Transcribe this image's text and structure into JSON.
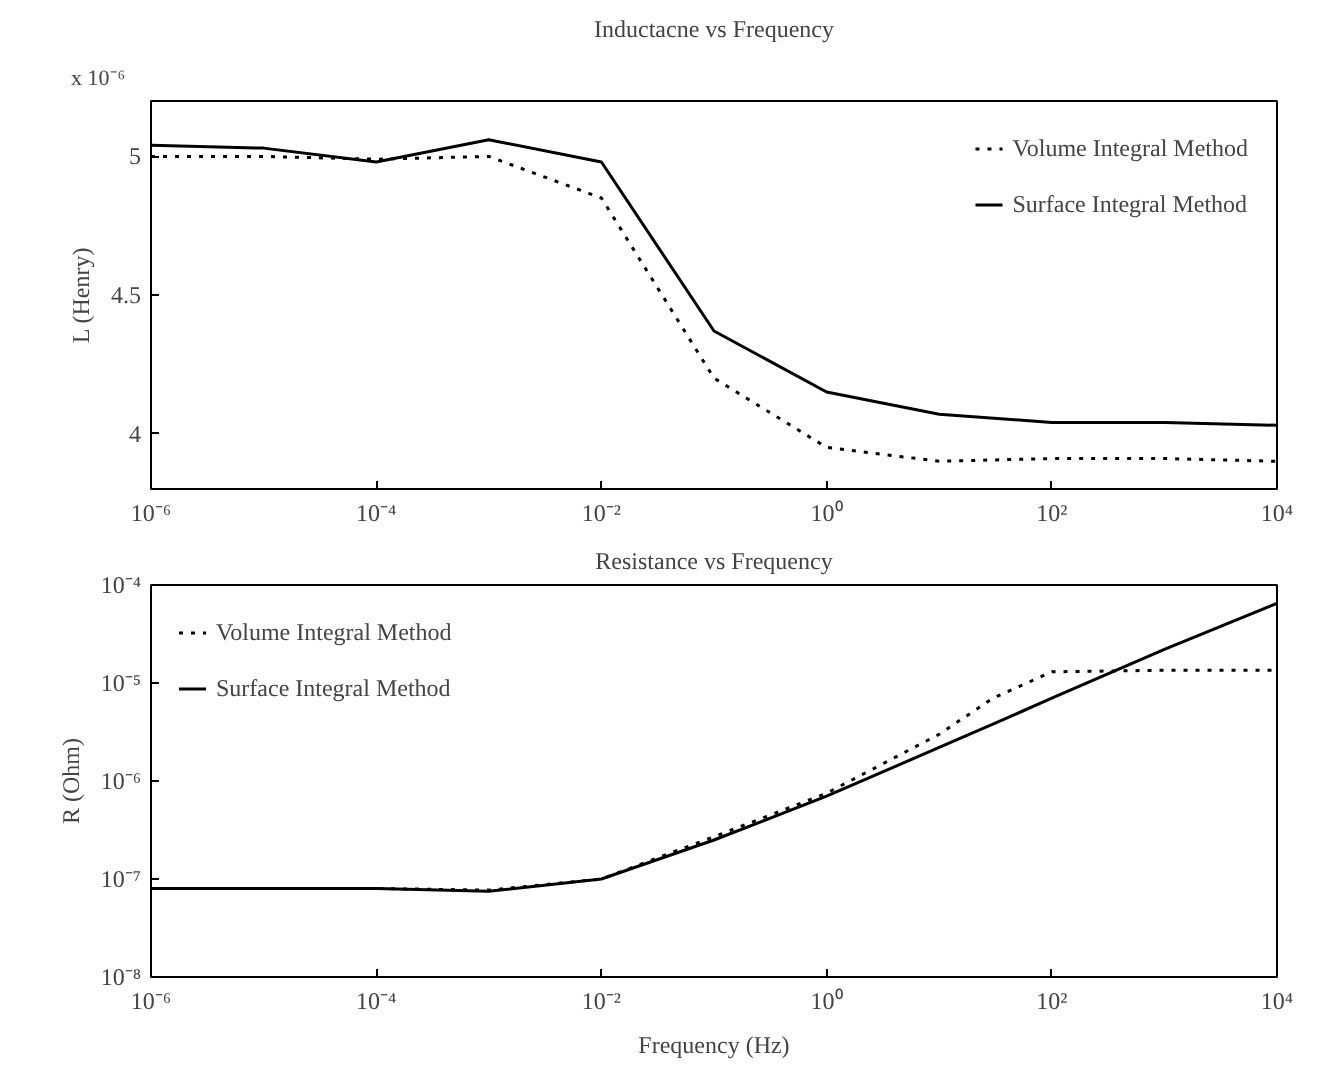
{
  "chart_data": [
    {
      "type": "line",
      "title": "Inductacne vs Frequency",
      "ylabel": "L (Henry)",
      "annotations": [
        "x 10⁻⁶"
      ],
      "x": [
        1e-06,
        1e-05,
        0.0001,
        0.001,
        0.01,
        0.1,
        1,
        10,
        100,
        1000,
        10000
      ],
      "series": [
        {
          "name": "Volume Integral Method",
          "color": "#000000",
          "line_style": "dotted",
          "values": [
            5.0,
            5.0,
            4.99,
            5.0,
            4.85,
            4.2,
            3.95,
            3.9,
            3.91,
            3.91,
            3.9
          ]
        },
        {
          "name": "Surface Integral Method",
          "color": "#000000",
          "line_style": "solid",
          "values": [
            5.04,
            5.03,
            4.98,
            5.06,
            4.98,
            4.37,
            4.15,
            4.07,
            4.04,
            4.04,
            4.03
          ]
        }
      ],
      "log": "x",
      "xlim": [
        1e-06,
        10000
      ],
      "ylim": [
        3.8,
        5.2
      ],
      "xticks": [
        {
          "value": 1e-06,
          "label": "10⁻⁶"
        },
        {
          "value": 0.0001,
          "label": "10⁻⁴"
        },
        {
          "value": 0.01,
          "label": "10⁻²"
        },
        {
          "value": 1,
          "label": "10⁰"
        },
        {
          "value": 100,
          "label": "10²"
        },
        {
          "value": 10000,
          "label": "10⁴"
        }
      ],
      "yticks": [
        4,
        4.5,
        5
      ],
      "grid": false,
      "legend": "top right"
    },
    {
      "type": "line",
      "title": "Resistance vs Frequency",
      "xlabel": "Frequency (Hz)",
      "ylabel": "R (Ohm)",
      "x": [
        1e-06,
        1e-05,
        0.0001,
        0.001,
        0.01,
        0.1,
        1,
        10,
        30,
        100,
        1000,
        10000
      ],
      "series": [
        {
          "name": "Volume Integral Method",
          "color": "#000000",
          "line_style": "dotted",
          "values": [
            8e-08,
            8e-08,
            8e-08,
            7.7e-08,
            1e-07,
            2.7e-07,
            7.5e-07,
            3e-06,
            7e-06,
            1.3e-05,
            1.35e-05,
            1.35e-05
          ]
        },
        {
          "name": "Surface Integral Method",
          "color": "#000000",
          "line_style": "solid",
          "values": [
            8e-08,
            8e-08,
            8e-08,
            7.5e-08,
            1e-07,
            2.5e-07,
            7e-07,
            2.2e-06,
            3.8e-06,
            7e-06,
            2.2e-05,
            6.5e-05
          ]
        }
      ],
      "log": "xy",
      "xlim": [
        1e-06,
        10000
      ],
      "ylim": [
        1e-08,
        0.0001
      ],
      "xticks": [
        {
          "value": 1e-06,
          "label": "10⁻⁶"
        },
        {
          "value": 0.0001,
          "label": "10⁻⁴"
        },
        {
          "value": 0.01,
          "label": "10⁻²"
        },
        {
          "value": 1,
          "label": "10⁰"
        },
        {
          "value": 100,
          "label": "10²"
        },
        {
          "value": 10000,
          "label": "10⁴"
        }
      ],
      "yticks": [
        {
          "value": 1e-08,
          "label": "10⁻⁸"
        },
        {
          "value": 1e-07,
          "label": "10⁻⁷"
        },
        {
          "value": 1e-06,
          "label": "10⁻⁶"
        },
        {
          "value": 1e-05,
          "label": "10⁻⁵"
        },
        {
          "value": 0.0001,
          "label": "10⁻⁴"
        }
      ],
      "grid": false,
      "legend": "top left"
    }
  ]
}
